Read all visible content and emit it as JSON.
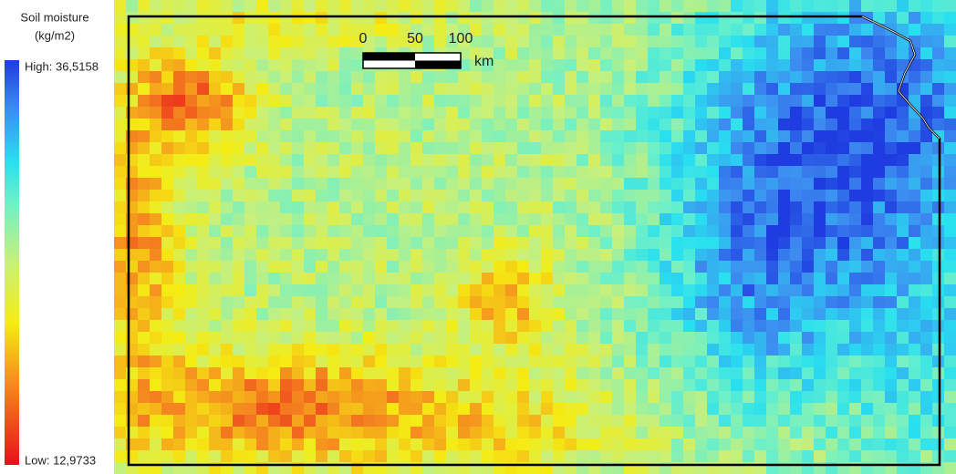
{
  "legend": {
    "title": "Soil moisture",
    "unit": "(kg/m2)",
    "high": "High: 36,5158",
    "low": "Low: 12,9733"
  },
  "scale_bar": {
    "labels": [
      "0",
      "50",
      "100"
    ],
    "unit": "km"
  }
}
